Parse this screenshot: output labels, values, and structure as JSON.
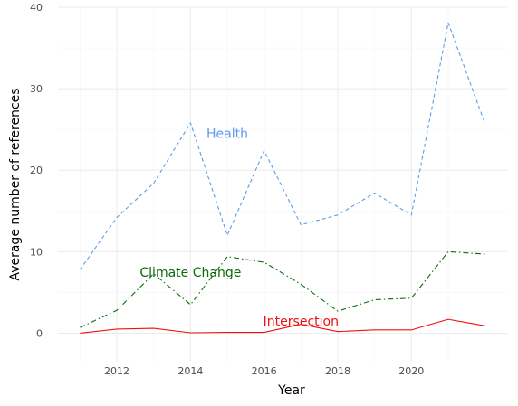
{
  "chart_data": {
    "type": "line",
    "title": "",
    "xlabel": "Year",
    "ylabel": "Average number of references",
    "xlim": [
      2010.4,
      2022.6
    ],
    "ylim": [
      -3.5,
      40
    ],
    "x_major_ticks": [
      2012,
      2014,
      2016,
      2018,
      2020
    ],
    "x_minor_ticks": [
      2011,
      2013,
      2015,
      2017,
      2019,
      2021
    ],
    "y_major_ticks": [
      0,
      10,
      20,
      30,
      40
    ],
    "y_minor_ticks": [
      5,
      15,
      25,
      35
    ],
    "grid": true,
    "legend": "none",
    "x": [
      2011,
      2012,
      2013,
      2014,
      2015,
      2016,
      2017,
      2018,
      2019,
      2020,
      2021,
      2022
    ],
    "series": [
      {
        "name": "Health",
        "color": "#5b9bea",
        "dash": "dashed",
        "values": [
          7.8,
          14.2,
          18.4,
          25.8,
          12.0,
          22.4,
          13.3,
          14.5,
          17.2,
          14.5,
          38.1,
          25.7
        ],
        "label_at": [
          2015.0,
          24.5
        ]
      },
      {
        "name": "Climate Change",
        "color": "#0b6b0b",
        "dash": "dashdot",
        "values": [
          0.7,
          2.8,
          7.3,
          3.5,
          9.4,
          8.7,
          6.0,
          2.7,
          4.1,
          4.3,
          10.0,
          9.7
        ],
        "label_at": [
          2014.0,
          7.5
        ]
      },
      {
        "name": "Intersection",
        "color": "#ee1111",
        "dash": "solid",
        "values": [
          0.0,
          0.5,
          0.6,
          0.05,
          0.1,
          0.1,
          1.1,
          0.2,
          0.4,
          0.4,
          1.7,
          0.9
        ],
        "label_at": [
          2017.0,
          1.5
        ]
      }
    ]
  }
}
